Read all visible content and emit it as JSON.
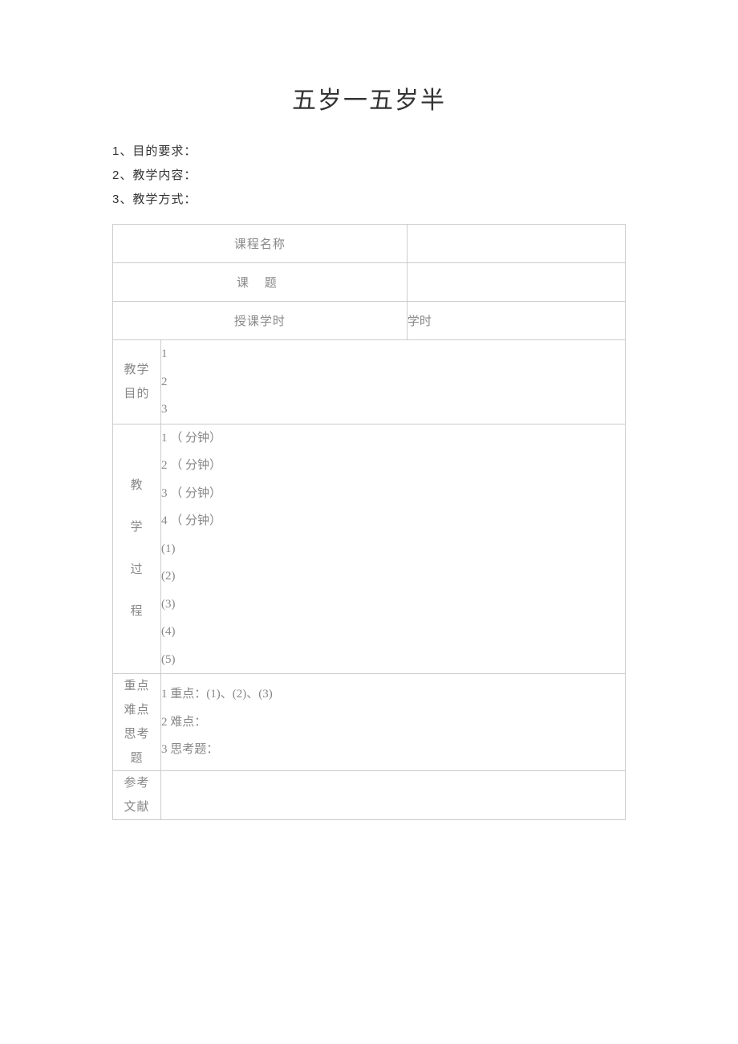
{
  "page": {
    "title": "五岁一五岁半",
    "background_color": "#ffffff",
    "text_color": "#333333",
    "muted_color": "#888888",
    "border_color": "#cccccc"
  },
  "intro": {
    "items": [
      {
        "num": "1",
        "sep": "、",
        "label": "目的要求："
      },
      {
        "num": "2",
        "sep": "、",
        "label": "教学内容："
      },
      {
        "num": "3",
        "sep": "、",
        "label": "教学方式："
      }
    ]
  },
  "table": {
    "rows": {
      "course_name": {
        "label": "课程名称",
        "value": ""
      },
      "topic": {
        "label": "课 题",
        "value": ""
      },
      "hours": {
        "label": "授课学时",
        "value": "学时"
      },
      "purpose": {
        "label_line1": "教学",
        "label_line2": "目的",
        "lines": [
          "1",
          "2",
          "3"
        ]
      },
      "process": {
        "label_c1": "教",
        "label_c2": "学",
        "label_c3": "过",
        "label_c4": "程",
        "lines": [
          "1 （    分钟）",
          "2 （    分钟）",
          "3 （    分钟）",
          "4 （    分钟）",
          "(1)",
          "(2)",
          "(3)",
          "(4)",
          "(5)"
        ]
      },
      "keypoints": {
        "label_l1": "重点",
        "label_l2": "难点",
        "label_l3": "思考",
        "label_l4": "题",
        "lines": [
          "1 重点：(1)、(2)、(3)",
          "2 难点：",
          "3 思考题："
        ]
      },
      "references": {
        "label_l1": "参考",
        "label_l2": "文献",
        "value": ""
      }
    }
  }
}
